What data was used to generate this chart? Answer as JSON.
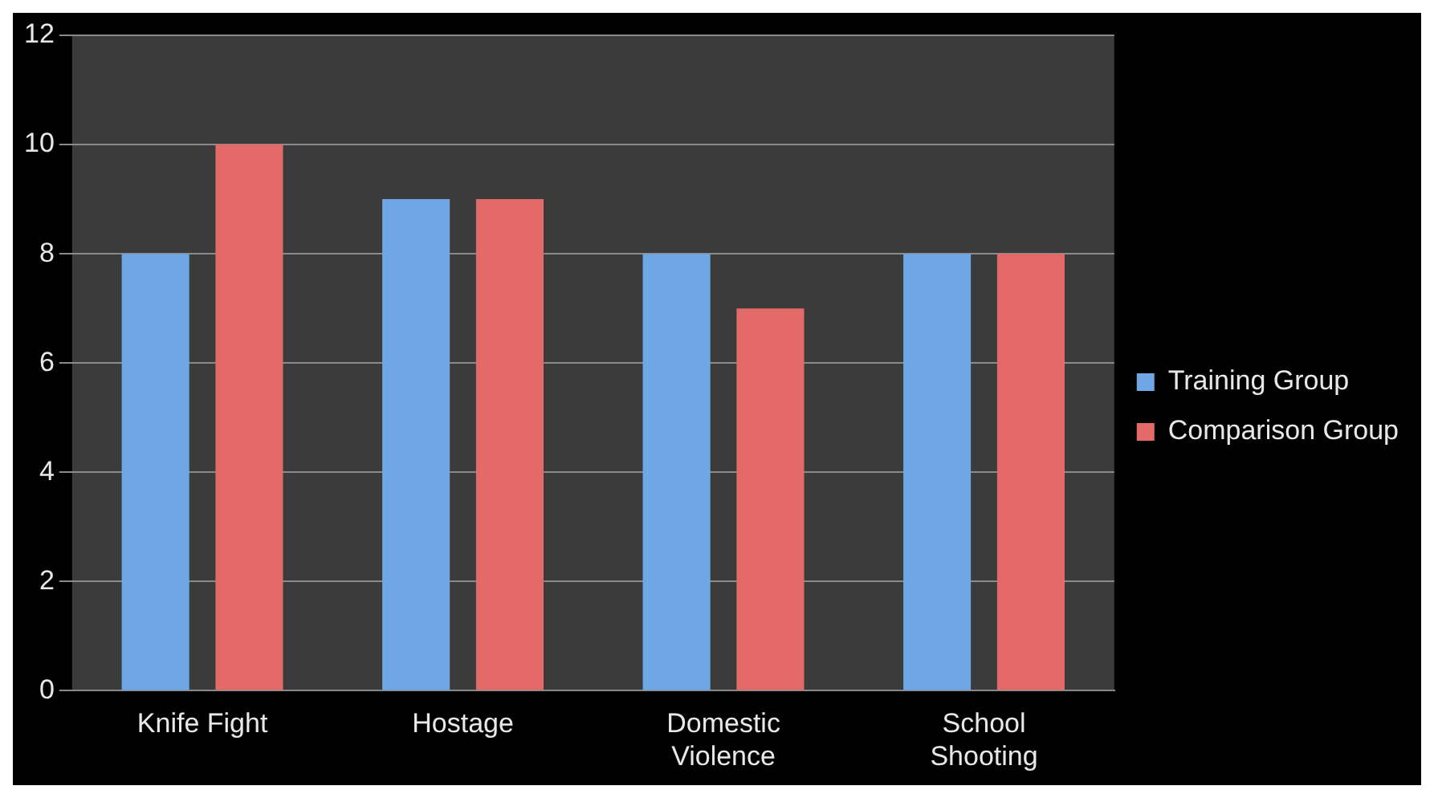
{
  "chart_data": {
    "type": "bar",
    "categories": [
      "Knife Fight",
      "Hostage",
      "Domestic Violence",
      "School Shooting"
    ],
    "series": [
      {
        "name": "Training Group",
        "color": "#6ea6e6",
        "values": [
          8,
          9,
          8,
          8
        ]
      },
      {
        "name": "Comparison Group",
        "color": "#e46a6a",
        "values": [
          10,
          9,
          7,
          8
        ]
      }
    ],
    "ylim": [
      0,
      12
    ],
    "yticks": [
      0,
      2,
      4,
      6,
      8,
      10,
      12
    ],
    "grid": "y",
    "legend": "right"
  }
}
